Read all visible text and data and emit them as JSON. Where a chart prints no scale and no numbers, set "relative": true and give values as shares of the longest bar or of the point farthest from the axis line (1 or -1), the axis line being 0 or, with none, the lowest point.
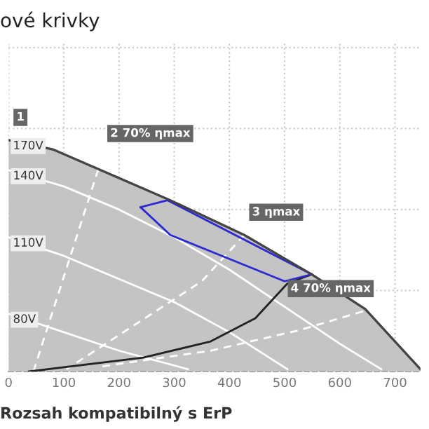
{
  "chart_data": {
    "type": "line",
    "title": "ové krivky",
    "relative": true,
    "xlim": [
      0,
      746
    ],
    "xticks": [
      0,
      100,
      200,
      300,
      400,
      500,
      600,
      700
    ],
    "grid": true,
    "tick_labels": "x",
    "series": [
      {
        "name": "170V",
        "type": "area",
        "color": "#c4c4c4",
        "x": [
          0,
          80,
          293,
          427,
          549,
          646,
          746
        ],
        "values": [
          1.0,
          0.96,
          0.74,
          0.59,
          0.42,
          0.27,
          0.01
        ]
      },
      {
        "name": "140V",
        "color": "#ffffff",
        "x": [
          0,
          100,
          200,
          300,
          400,
          500,
          600,
          675
        ],
        "values": [
          0.87,
          0.8,
          0.7,
          0.58,
          0.44,
          0.28,
          0.12,
          0.01
        ]
      },
      {
        "name": "110V",
        "color": "#ffffff",
        "x": [
          0,
          100,
          200,
          300,
          400,
          505
        ],
        "values": [
          0.58,
          0.5,
          0.4,
          0.3,
          0.17,
          0.01
        ]
      },
      {
        "name": "80V",
        "color": "#ffffff",
        "x": [
          0,
          100,
          200,
          325
        ],
        "values": [
          0.25,
          0.17,
          0.09,
          0.01
        ]
      },
      {
        "color": "#ffffff",
        "line_style": "dashed",
        "x": [
          170,
          45
        ],
        "values": [
          0.93,
          0.0
        ]
      },
      {
        "color": "#ffffff",
        "line_style": "dashed",
        "x": [
          427,
          350,
          105
        ],
        "values": [
          0.59,
          0.39,
          0.01
        ]
      },
      {
        "color": "#ffffff",
        "line_style": "dashed",
        "x": [
          642,
          529,
          366,
          163
        ],
        "values": [
          0.26,
          0.18,
          0.09,
          0.02
        ]
      },
      {
        "color": "#222222",
        "x": [
          37,
          244,
          366,
          447,
          505,
          549
        ],
        "values": [
          0.0,
          0.06,
          0.13,
          0.23,
          0.38,
          0.42
        ]
      },
      {
        "color": "#2a2ad0",
        "x": [
          239,
          288,
          549
        ],
        "values": [
          0.71,
          0.74,
          0.42
        ]
      },
      {
        "color": "#2a2ad0",
        "x": [
          239,
          293,
          500,
          549
        ],
        "values": [
          0.71,
          0.59,
          0.39,
          0.42
        ]
      }
    ],
    "annotations": [
      {
        "text": "1",
        "x": 0,
        "y": 1.0
      },
      {
        "text": "2 70% ηmax",
        "x": 170,
        "y": 0.93
      },
      {
        "text": "3 ηmax",
        "x": 427,
        "y": 0.59
      },
      {
        "text": "4 70% ηmax",
        "x": 642,
        "y": 0.26
      },
      "Rozsah kompatibilný s ErP"
    ]
  }
}
